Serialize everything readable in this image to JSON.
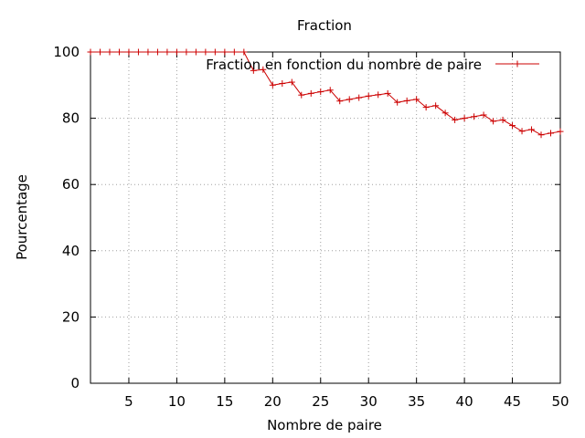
{
  "chart_data": {
    "type": "line",
    "title": "Fraction",
    "xlabel": "Nombre de paire",
    "ylabel": "Pourcentage",
    "xlim": [
      1,
      50
    ],
    "ylim": [
      0,
      100
    ],
    "x_ticks": [
      5,
      10,
      15,
      20,
      25,
      30,
      35,
      40,
      45,
      50
    ],
    "y_ticks": [
      0,
      20,
      40,
      60,
      80,
      100
    ],
    "grid": true,
    "legend_position": "top-right",
    "series": [
      {
        "name": "Fraction en fonction du nombre de paire",
        "color": "#cc0000",
        "marker": "plus",
        "x": [
          1,
          2,
          3,
          4,
          5,
          6,
          7,
          8,
          9,
          10,
          11,
          12,
          13,
          14,
          15,
          16,
          17,
          18,
          19,
          20,
          21,
          22,
          23,
          24,
          25,
          26,
          27,
          28,
          29,
          30,
          31,
          32,
          33,
          34,
          35,
          36,
          37,
          38,
          39,
          40,
          41,
          42,
          43,
          44,
          45,
          46,
          47,
          48,
          49,
          50
        ],
        "y": [
          100,
          100,
          100,
          100,
          100,
          100,
          100,
          100,
          100,
          100,
          100,
          100,
          100,
          100,
          100,
          100,
          100,
          94.4,
          94.7,
          90,
          90.5,
          90.9,
          87,
          87.5,
          88,
          88.5,
          85.2,
          85.7,
          86.2,
          86.7,
          87.1,
          87.5,
          84.8,
          85.3,
          85.7,
          83.3,
          83.8,
          81.6,
          79.5,
          80,
          80.5,
          81,
          79.1,
          79.5,
          77.8,
          76.1,
          76.6,
          75,
          75.5,
          76
        ]
      }
    ]
  }
}
